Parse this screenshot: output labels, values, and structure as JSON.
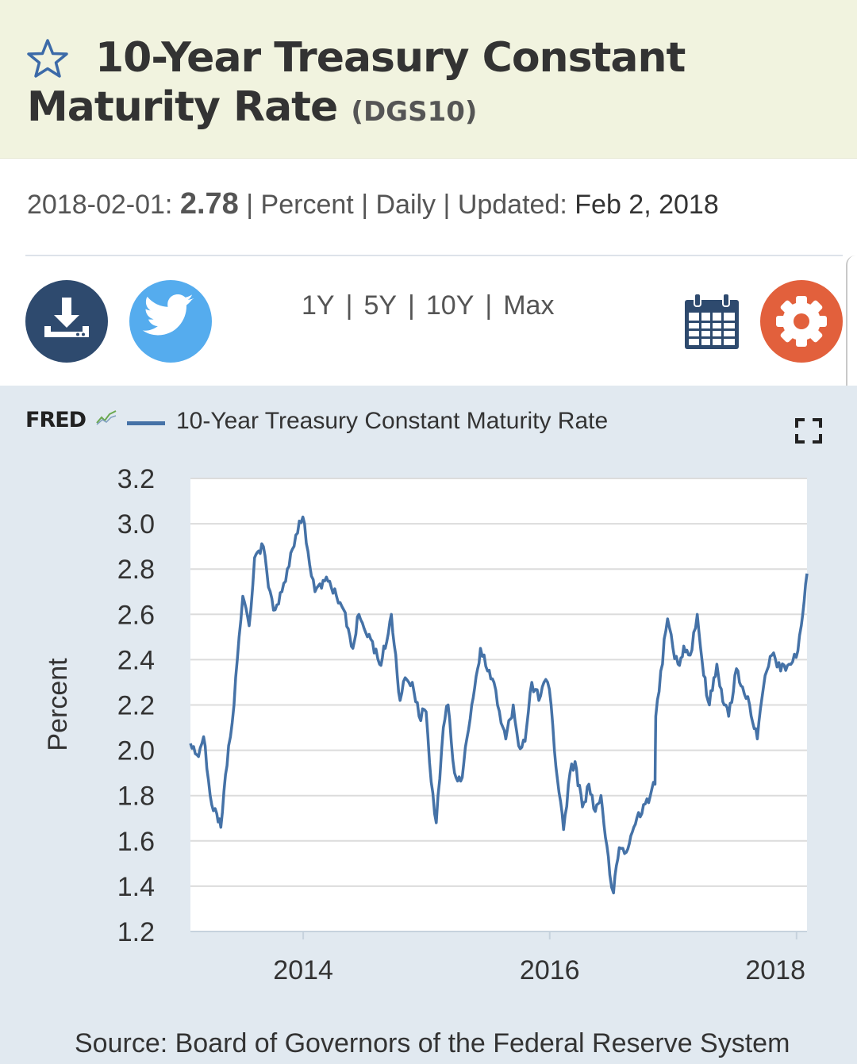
{
  "header": {
    "title": "10-Year Treasury Constant Maturity Rate",
    "series_id": "(DGS10)"
  },
  "meta": {
    "date": "2018-02-01:",
    "value": "2.78",
    "units": "Percent",
    "frequency": "Daily",
    "updated_label": "Updated:",
    "updated_date": "Feb 2, 2018",
    "separator": "|"
  },
  "toolbar": {
    "download_icon": "download-icon",
    "twitter_icon": "twitter-icon",
    "calendar_icon": "calendar-icon",
    "settings_icon": "gear-icon",
    "ranges": [
      "1Y",
      "5Y",
      "10Y",
      "Max"
    ],
    "separator": "|"
  },
  "colors": {
    "header_bg": "#f1f3df",
    "panel_bg": "#e1e9f0",
    "series": "#4572a7",
    "download": "#2e4a6e",
    "twitter": "#55acee",
    "settings": "#e2603c"
  },
  "chart_header": {
    "logo": "FRED",
    "legend_label": "10-Year Treasury Constant Maturity Rate"
  },
  "chart_data": {
    "type": "line",
    "title": "",
    "xlabel": "",
    "ylabel": "Percent",
    "ylim": [
      1.2,
      3.2
    ],
    "yticks": [
      "1.2",
      "1.4",
      "1.6",
      "1.8",
      "2.0",
      "2.2",
      "2.4",
      "2.6",
      "2.8",
      "3.0",
      "3.2"
    ],
    "xticks": [
      "2014",
      "2016",
      "2018"
    ],
    "xlim": [
      "2013-02-01",
      "2018-02-01"
    ],
    "grid": true,
    "legend": "top-left",
    "series": [
      {
        "name": "10-Year Treasury Constant Maturity Rate",
        "x": [
          "2013-02-01",
          "2013-02-20",
          "2013-03-12",
          "2013-04-05",
          "2013-04-20",
          "2013-05-02",
          "2013-05-25",
          "2013-06-10",
          "2013-06-25",
          "2013-07-06",
          "2013-07-25",
          "2013-08-10",
          "2013-08-22",
          "2013-09-05",
          "2013-09-20",
          "2013-10-10",
          "2013-10-30",
          "2013-11-15",
          "2013-12-10",
          "2013-12-31",
          "2014-01-20",
          "2014-02-05",
          "2014-03-01",
          "2014-03-25",
          "2014-04-15",
          "2014-05-01",
          "2014-05-28",
          "2014-06-15",
          "2014-07-05",
          "2014-07-25",
          "2014-08-15",
          "2014-09-01",
          "2014-09-19",
          "2014-10-15",
          "2014-10-30",
          "2014-11-20",
          "2014-12-10",
          "2014-12-31",
          "2015-01-15",
          "2015-01-30",
          "2015-02-20",
          "2015-03-06",
          "2015-03-25",
          "2015-04-17",
          "2015-05-15",
          "2015-06-10",
          "2015-07-01",
          "2015-07-20",
          "2015-08-10",
          "2015-08-24",
          "2015-09-15",
          "2015-10-01",
          "2015-10-20",
          "2015-11-09",
          "2015-11-30",
          "2015-12-15",
          "2015-12-31",
          "2016-01-15",
          "2016-02-11",
          "2016-03-01",
          "2016-03-16",
          "2016-04-07",
          "2016-04-26",
          "2016-05-15",
          "2016-06-01",
          "2016-06-27",
          "2016-07-08",
          "2016-07-25",
          "2016-08-15",
          "2016-09-15",
          "2016-10-05",
          "2016-10-25",
          "2016-11-08",
          "2016-11-10",
          "2016-11-25",
          "2016-12-15",
          "2016-12-31",
          "2017-01-15",
          "2017-02-01",
          "2017-02-20",
          "2017-03-13",
          "2017-04-01",
          "2017-04-18",
          "2017-05-10",
          "2017-06-01",
          "2017-06-14",
          "2017-07-07",
          "2017-07-25",
          "2017-08-15",
          "2017-09-07",
          "2017-09-30",
          "2017-10-25",
          "2017-11-15",
          "2017-12-10",
          "2017-12-31",
          "2018-01-15",
          "2018-02-01"
        ],
        "values": [
          2.03,
          1.98,
          2.06,
          1.76,
          1.72,
          1.66,
          2.02,
          2.2,
          2.5,
          2.68,
          2.55,
          2.85,
          2.88,
          2.9,
          2.72,
          2.62,
          2.7,
          2.8,
          2.95,
          3.03,
          2.82,
          2.7,
          2.75,
          2.72,
          2.65,
          2.62,
          2.45,
          2.6,
          2.52,
          2.48,
          2.38,
          2.45,
          2.6,
          2.22,
          2.32,
          2.3,
          2.15,
          2.17,
          1.86,
          1.68,
          2.1,
          2.2,
          1.9,
          1.88,
          2.2,
          2.45,
          2.35,
          2.3,
          2.12,
          2.05,
          2.2,
          2.02,
          2.04,
          2.3,
          2.22,
          2.3,
          2.27,
          2.0,
          1.65,
          1.9,
          1.95,
          1.75,
          1.85,
          1.73,
          1.8,
          1.45,
          1.37,
          1.57,
          1.55,
          1.7,
          1.76,
          1.8,
          1.85,
          2.15,
          2.35,
          2.58,
          2.45,
          2.38,
          2.46,
          2.42,
          2.6,
          2.33,
          2.2,
          2.38,
          2.2,
          2.15,
          2.36,
          2.28,
          2.2,
          2.05,
          2.33,
          2.43,
          2.35,
          2.38,
          2.41,
          2.55,
          2.78
        ]
      }
    ]
  },
  "source": "Source: Board of Governors of the Federal Reserve System"
}
